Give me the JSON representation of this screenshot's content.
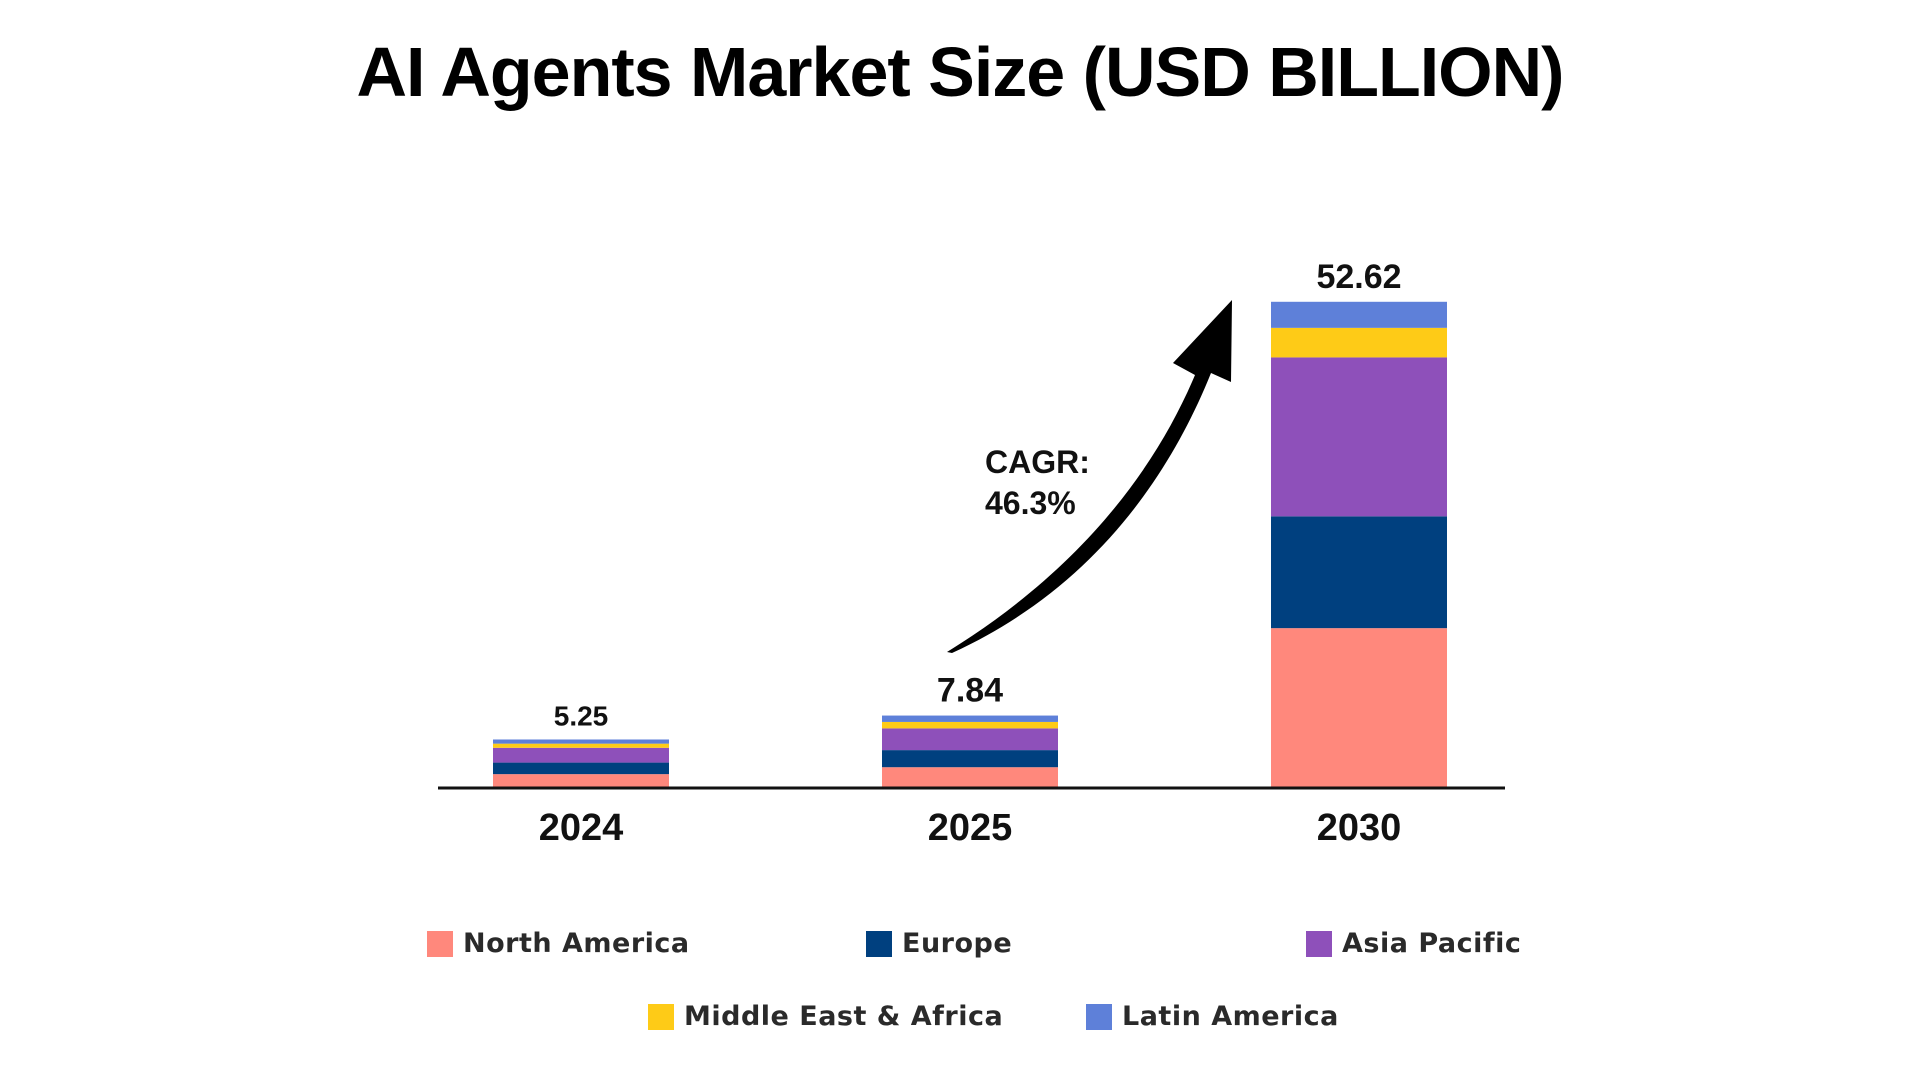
{
  "chart_data": {
    "type": "bar",
    "stacked": true,
    "title": "AI Agents Market Size (USD BILLION)",
    "xlabel": "",
    "ylabel": "",
    "categories": [
      "2024",
      "2025",
      "2030"
    ],
    "totals": [
      "5.25",
      "7.84",
      "52.62"
    ],
    "ylim": [
      0,
      56
    ],
    "grid": false,
    "legend_position": "bottom",
    "annotation": {
      "line1": "CAGR:",
      "line2": "46.3%"
    },
    "series": [
      {
        "name": "North America",
        "color": "#FF887C",
        "values": [
          1.5,
          2.25,
          17.3
        ]
      },
      {
        "name": "Europe",
        "color": "#00407F",
        "values": [
          1.25,
          1.85,
          12.1
        ]
      },
      {
        "name": "Asia Pacific",
        "color": "#8E50BA",
        "values": [
          1.6,
          2.35,
          17.2
        ]
      },
      {
        "name": "Middle East & Africa",
        "color": "#FECB17",
        "values": [
          0.45,
          0.7,
          3.2
        ]
      },
      {
        "name": "Latin America",
        "color": "#5E80D9",
        "values": [
          0.45,
          0.69,
          2.82
        ]
      }
    ]
  }
}
